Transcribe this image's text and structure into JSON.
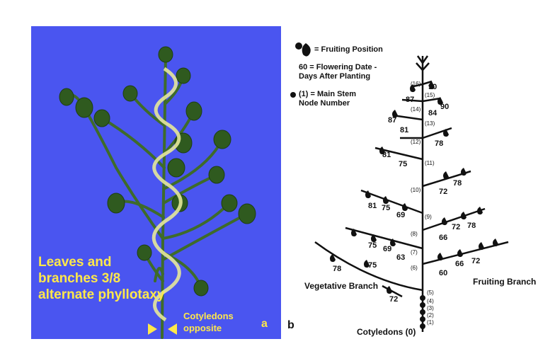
{
  "panel_a": {
    "caption": "Leaves and\nbranches 3/8\nalternate phyllotaxy",
    "cotyledons": "Cotyledons\nopposite",
    "letter": "a",
    "colors": {
      "background": "#4a55f0",
      "text": "#ffe84a",
      "stem": "#3e6b2a",
      "spiral": "#e6e89a"
    }
  },
  "panel_b": {
    "letter": "b",
    "legend": {
      "fruiting": "= Fruiting Position",
      "flowering": "60 = Flowering Date -\n     Days After Planting",
      "node": "(1) = Main Stem\n       Node Number"
    },
    "vegetative_label": "Vegetative Branch",
    "fruiting_label": "Fruiting Branch",
    "cotyledons_label": "Cotyledons (0)",
    "node_labels": [
      "(1)",
      "(2)",
      "(3)",
      "(4)",
      "(5)",
      "(6)",
      "(7)",
      "(8)",
      "(9)",
      "(10)",
      "(11)",
      "(12)",
      "(13)",
      "(14)",
      "(15)",
      "(16)"
    ],
    "flowering_dates": [
      "90",
      "87",
      "84",
      "90",
      "87",
      "81",
      "78",
      "81",
      "75",
      "78",
      "72",
      "81",
      "75",
      "69",
      "72",
      "78",
      "66",
      "75",
      "69",
      "63",
      "66",
      "72",
      "60",
      "78",
      "75",
      "72"
    ]
  }
}
